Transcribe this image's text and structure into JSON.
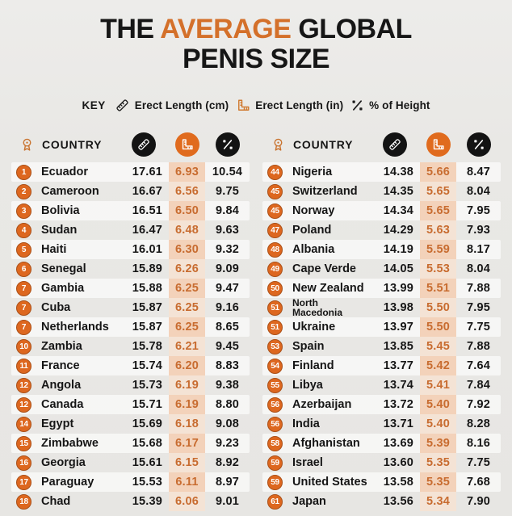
{
  "title": {
    "pre": "THE ",
    "highlight": "AVERAGE",
    "post": " GLOBAL",
    "line2": "PENIS SIZE"
  },
  "key": {
    "label": "KEY",
    "items": [
      {
        "icon": "ruler-diagonal-icon",
        "label": "Erect Length (cm)"
      },
      {
        "icon": "ruler-square-icon",
        "label": "Erect Length (in)"
      },
      {
        "icon": "percent-icon",
        "label": "% of Height"
      }
    ]
  },
  "table": {
    "country_header": "COUNTRY",
    "columns": [
      "rank",
      "country",
      "erect_length_cm",
      "erect_length_in",
      "percent_of_height"
    ]
  },
  "colors": {
    "accent": "#d4702a",
    "badge": "#dd671f",
    "in-text": "#c86c30",
    "circle-black": "#131313",
    "circle-orange": "#e06b1e"
  },
  "chart_data": {
    "type": "table",
    "title": "The Average Global Penis Size",
    "legend": [
      "Erect Length (cm)",
      "Erect Length (in)",
      "% of Height"
    ],
    "left_rows": [
      {
        "rank": "1",
        "country": "Ecuador",
        "cm": "17.61",
        "in": "6.93",
        "pct": "10.54"
      },
      {
        "rank": "2",
        "country": "Cameroon",
        "cm": "16.67",
        "in": "6.56",
        "pct": "9.75"
      },
      {
        "rank": "3",
        "country": "Bolivia",
        "cm": "16.51",
        "in": "6.50",
        "pct": "9.84"
      },
      {
        "rank": "4",
        "country": "Sudan",
        "cm": "16.47",
        "in": "6.48",
        "pct": "9.63"
      },
      {
        "rank": "5",
        "country": "Haiti",
        "cm": "16.01",
        "in": "6.30",
        "pct": "9.32"
      },
      {
        "rank": "6",
        "country": "Senegal",
        "cm": "15.89",
        "in": "6.26",
        "pct": "9.09"
      },
      {
        "rank": "7",
        "country": "Gambia",
        "cm": "15.88",
        "in": "6.25",
        "pct": "9.47"
      },
      {
        "rank": "7",
        "country": "Cuba",
        "cm": "15.87",
        "in": "6.25",
        "pct": "9.16"
      },
      {
        "rank": "7",
        "country": "Netherlands",
        "cm": "15.87",
        "in": "6.25",
        "pct": "8.65"
      },
      {
        "rank": "10",
        "country": "Zambia",
        "cm": "15.78",
        "in": "6.21",
        "pct": "9.45"
      },
      {
        "rank": "11",
        "country": "France",
        "cm": "15.74",
        "in": "6.20",
        "pct": "8.83"
      },
      {
        "rank": "12",
        "country": "Angola",
        "cm": "15.73",
        "in": "6.19",
        "pct": "9.38"
      },
      {
        "rank": "12",
        "country": "Canada",
        "cm": "15.71",
        "in": "6.19",
        "pct": "8.80"
      },
      {
        "rank": "14",
        "country": "Egypt",
        "cm": "15.69",
        "in": "6.18",
        "pct": "9.08"
      },
      {
        "rank": "15",
        "country": "Zimbabwe",
        "cm": "15.68",
        "in": "6.17",
        "pct": "9.23"
      },
      {
        "rank": "16",
        "country": "Georgia",
        "cm": "15.61",
        "in": "6.15",
        "pct": "8.92"
      },
      {
        "rank": "17",
        "country": "Paraguay",
        "cm": "15.53",
        "in": "6.11",
        "pct": "8.97"
      },
      {
        "rank": "18",
        "country": "Chad",
        "cm": "15.39",
        "in": "6.06",
        "pct": "9.01"
      }
    ],
    "right_rows": [
      {
        "rank": "44",
        "country": "Nigeria",
        "cm": "14.38",
        "in": "5.66",
        "pct": "8.47"
      },
      {
        "rank": "45",
        "country": "Switzerland",
        "cm": "14.35",
        "in": "5.65",
        "pct": "8.04"
      },
      {
        "rank": "45",
        "country": "Norway",
        "cm": "14.34",
        "in": "5.65",
        "pct": "7.95"
      },
      {
        "rank": "47",
        "country": "Poland",
        "cm": "14.29",
        "in": "5.63",
        "pct": "7.93"
      },
      {
        "rank": "48",
        "country": "Albania",
        "cm": "14.19",
        "in": "5.59",
        "pct": "8.17"
      },
      {
        "rank": "49",
        "country": "Cape Verde",
        "cm": "14.05",
        "in": "5.53",
        "pct": "8.04"
      },
      {
        "rank": "50",
        "country": "New Zealand",
        "cm": "13.99",
        "in": "5.51",
        "pct": "7.88"
      },
      {
        "rank": "51",
        "country": "North Macedonia",
        "cm": "13.98",
        "in": "5.50",
        "pct": "7.95"
      },
      {
        "rank": "51",
        "country": "Ukraine",
        "cm": "13.97",
        "in": "5.50",
        "pct": "7.75"
      },
      {
        "rank": "53",
        "country": "Spain",
        "cm": "13.85",
        "in": "5.45",
        "pct": "7.88"
      },
      {
        "rank": "54",
        "country": "Finland",
        "cm": "13.77",
        "in": "5.42",
        "pct": "7.64"
      },
      {
        "rank": "55",
        "country": "Libya",
        "cm": "13.74",
        "in": "5.41",
        "pct": "7.84"
      },
      {
        "rank": "56",
        "country": "Azerbaijan",
        "cm": "13.72",
        "in": "5.40",
        "pct": "7.92"
      },
      {
        "rank": "56",
        "country": "India",
        "cm": "13.71",
        "in": "5.40",
        "pct": "8.28"
      },
      {
        "rank": "58",
        "country": "Afghanistan",
        "cm": "13.69",
        "in": "5.39",
        "pct": "8.16"
      },
      {
        "rank": "59",
        "country": "Israel",
        "cm": "13.60",
        "in": "5.35",
        "pct": "7.75"
      },
      {
        "rank": "59",
        "country": "United States",
        "cm": "13.58",
        "in": "5.35",
        "pct": "7.68"
      },
      {
        "rank": "61",
        "country": "Japan",
        "cm": "13.56",
        "in": "5.34",
        "pct": "7.90"
      }
    ]
  }
}
